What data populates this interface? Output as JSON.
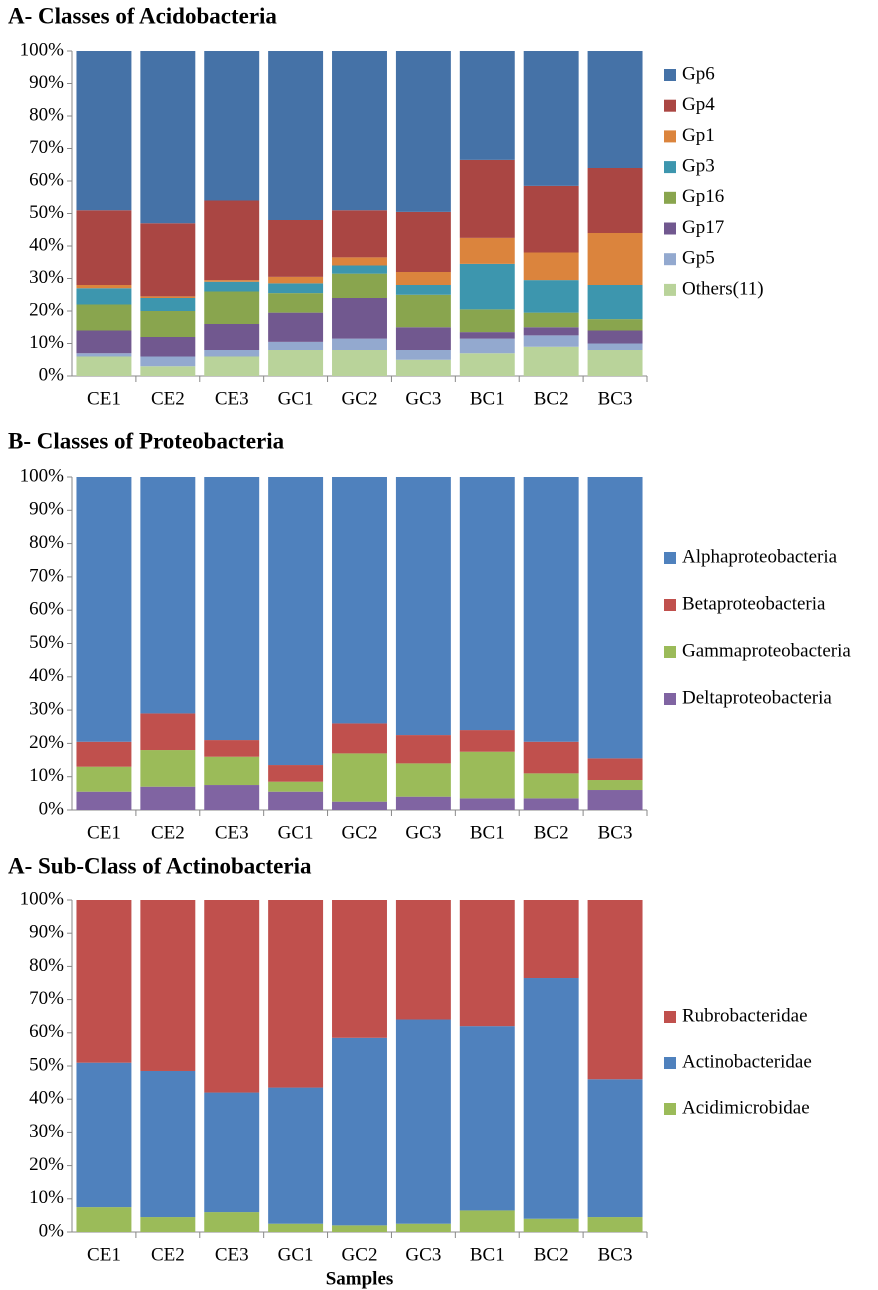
{
  "chart_data": [
    {
      "type": "stacked_bar",
      "title": "A- Classes of Acidobacteria",
      "categories": [
        "CE1",
        "CE2",
        "CE3",
        "GC1",
        "GC2",
        "GC3",
        "BC1",
        "BC2",
        "BC3"
      ],
      "series": [
        {
          "name": "Gp6",
          "color": "#4572a7",
          "values": [
            49,
            53,
            46,
            52,
            49,
            49.5,
            33.5,
            41.5,
            36
          ]
        },
        {
          "name": "Gp4",
          "color": "#aa4643",
          "values": [
            23,
            22.5,
            24.5,
            17.5,
            14.5,
            18.5,
            24,
            20.5,
            20
          ]
        },
        {
          "name": "Gp1",
          "color": "#db843d",
          "values": [
            1,
            0.5,
            0.5,
            2,
            2.5,
            4,
            8,
            8.5,
            16
          ]
        },
        {
          "name": "Gp3",
          "color": "#3d96ae",
          "values": [
            5,
            4,
            3,
            3,
            2.5,
            3,
            14,
            10,
            10.5
          ]
        },
        {
          "name": "Gp16",
          "color": "#89a54e",
          "values": [
            8,
            8,
            10,
            6,
            7.5,
            10,
            7,
            4.5,
            3.5
          ]
        },
        {
          "name": "Gp17",
          "color": "#71588f",
          "values": [
            7,
            6,
            8,
            9,
            12.5,
            7,
            2,
            2.5,
            4
          ]
        },
        {
          "name": "Gp5",
          "color": "#93a9cf",
          "values": [
            1,
            3,
            2,
            2.5,
            3.5,
            3,
            4.5,
            3.5,
            2
          ]
        },
        {
          "name": "Others(11)",
          "color": "#b9d39a",
          "values": [
            6,
            3,
            6,
            8,
            8,
            5,
            7,
            9,
            8
          ]
        }
      ],
      "ylim": [
        0,
        100
      ],
      "yticks": [
        {
          "value": 0,
          "label": "0%"
        },
        {
          "value": 10,
          "label": "10%"
        },
        {
          "value": 20,
          "label": "20%"
        },
        {
          "value": 30,
          "label": "30%"
        },
        {
          "value": 40,
          "label": "40%"
        },
        {
          "value": 50,
          "label": "50%"
        },
        {
          "value": 60,
          "label": "60%"
        },
        {
          "value": 70,
          "label": "70%"
        },
        {
          "value": 80,
          "label": "80%"
        },
        {
          "value": 90,
          "label": "90%"
        },
        {
          "value": 100,
          "label": "100%"
        }
      ],
      "legend": "right"
    },
    {
      "type": "stacked_bar",
      "title": "B- Classes of Proteobacteria",
      "categories": [
        "CE1",
        "CE2",
        "CE3",
        "GC1",
        "GC2",
        "GC3",
        "BC1",
        "BC2",
        "BC3"
      ],
      "series": [
        {
          "name": "Alphaproteobacteria",
          "color": "#4f81bd",
          "values": [
            79.5,
            71,
            79,
            86.5,
            74,
            77.5,
            76,
            79.5,
            84.5
          ]
        },
        {
          "name": "Betaproteobacteria",
          "color": "#c0504d",
          "values": [
            7.5,
            11,
            5,
            5,
            9,
            8.5,
            6.5,
            9.5,
            6.5
          ]
        },
        {
          "name": "Gammaproteobacteria",
          "color": "#9bbb59",
          "values": [
            7.5,
            11,
            8.5,
            3,
            14.5,
            10,
            14,
            7.5,
            3
          ]
        },
        {
          "name": "Deltaproteobacteria",
          "color": "#8064a2",
          "values": [
            5.5,
            7,
            7.5,
            5.5,
            2.5,
            4,
            3.5,
            3.5,
            6
          ]
        }
      ],
      "ylim": [
        0,
        100
      ],
      "yticks": [
        {
          "value": 0,
          "label": "0%"
        },
        {
          "value": 10,
          "label": "10%"
        },
        {
          "value": 20,
          "label": "20%"
        },
        {
          "value": 30,
          "label": "30%"
        },
        {
          "value": 40,
          "label": "40%"
        },
        {
          "value": 50,
          "label": "50%"
        },
        {
          "value": 60,
          "label": "60%"
        },
        {
          "value": 70,
          "label": "70%"
        },
        {
          "value": 80,
          "label": "80%"
        },
        {
          "value": 90,
          "label": "90%"
        },
        {
          "value": 100,
          "label": "100%"
        }
      ],
      "legend": "right"
    },
    {
      "type": "stacked_bar",
      "title": "A- Sub-Class of Actinobacteria",
      "x_label": "Samples",
      "categories": [
        "CE1",
        "CE2",
        "CE3",
        "GC1",
        "GC2",
        "GC3",
        "BC1",
        "BC2",
        "BC3"
      ],
      "series": [
        {
          "name": "Rubrobacteridae",
          "color": "#c0504d",
          "values": [
            49,
            51.5,
            58,
            56.5,
            41.5,
            36,
            38,
            23.5,
            54
          ]
        },
        {
          "name": "Actinobacteridae",
          "color": "#4f81bd",
          "values": [
            43.5,
            44,
            36,
            41,
            56.5,
            61.5,
            55.5,
            72.5,
            41.5
          ]
        },
        {
          "name": "Acidimicrobidae",
          "color": "#9bbb59",
          "values": [
            7.5,
            4.5,
            6,
            2.5,
            2,
            2.5,
            6.5,
            4,
            4.5
          ]
        }
      ],
      "ylim": [
        0,
        100
      ],
      "yticks": [
        {
          "value": 0,
          "label": "0%"
        },
        {
          "value": 10,
          "label": "10%"
        },
        {
          "value": 20,
          "label": "20%"
        },
        {
          "value": 30,
          "label": "30%"
        },
        {
          "value": 40,
          "label": "40%"
        },
        {
          "value": 50,
          "label": "50%"
        },
        {
          "value": 60,
          "label": "60%"
        },
        {
          "value": 70,
          "label": "70%"
        },
        {
          "value": 80,
          "label": "80%"
        },
        {
          "value": 90,
          "label": "90%"
        },
        {
          "value": 100,
          "label": "100%"
        }
      ],
      "legend": "right"
    }
  ]
}
